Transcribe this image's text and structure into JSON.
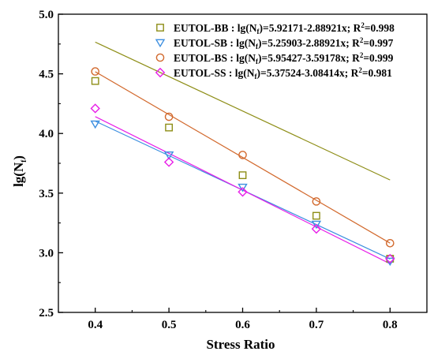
{
  "chart_data": {
    "type": "scatter",
    "xlabel": "Stress Ratio",
    "ylabel_main": "lg(N",
    "ylabel_sub": "f",
    "ylabel_close": ")",
    "xlim": [
      0.35,
      0.85
    ],
    "ylim": [
      2.5,
      5.0
    ],
    "xticks": [
      0.4,
      0.5,
      0.6,
      0.7,
      0.8
    ],
    "xtick_labels": [
      "0.4",
      "0.5",
      "0.6",
      "0.7",
      "0.8"
    ],
    "yticks": [
      2.5,
      3.0,
      3.5,
      4.0,
      4.5,
      5.0
    ],
    "ytick_labels": [
      "2.5",
      "3.0",
      "3.5",
      "4.0",
      "4.5",
      "5.0"
    ],
    "legend_position": "top-right",
    "grid": false,
    "x": [
      0.4,
      0.5,
      0.6,
      0.7,
      0.8
    ],
    "series": [
      {
        "name": "EUTOL-BB",
        "marker": "square",
        "color": "#8e8e17",
        "values": [
          4.44,
          4.05,
          3.65,
          3.31,
          2.95
        ],
        "fit": {
          "intercept": 5.92171,
          "slope": -2.88921
        },
        "legend": {
          "p1": " : lg(N",
          "sub1": "f",
          "p2": ")=5.92171-2.88921x; R",
          "sup": "2",
          "p3": "=0.998"
        }
      },
      {
        "name": "EUTOL-SB",
        "marker": "triangle-down",
        "color": "#3d8fe0",
        "values": [
          4.08,
          3.82,
          3.55,
          3.24,
          2.93
        ],
        "fit": {
          "intercept": 5.25903,
          "slope": -2.88921
        },
        "legend": {
          "p1": " : lg(N",
          "sub1": "f",
          "p2": ")=5.25903-2.88921x; R",
          "sup": "2",
          "p3": "=0.997"
        }
      },
      {
        "name": "EUTOL-BS",
        "marker": "circle",
        "color": "#d2692d",
        "values": [
          4.52,
          4.14,
          3.82,
          3.43,
          3.08
        ],
        "fit": {
          "intercept": 5.95427,
          "slope": -3.59178
        },
        "legend": {
          "p1": " : lg(N",
          "sub1": "f",
          "p2": ")=5.95427-3.59178x; R",
          "sup": "2",
          "p3": "=0.999"
        }
      },
      {
        "name": "EUTOL-SS",
        "marker": "diamond",
        "color": "#e81ee8",
        "values": [
          4.21,
          3.76,
          3.51,
          3.2,
          2.95
        ],
        "fit": {
          "intercept": 5.37524,
          "slope": -3.08414
        },
        "legend": {
          "p1": " : lg(N",
          "sub1": "f",
          "p2": ")=5.37524-3.08414x; R",
          "sup": "2",
          "p3": "=0.981"
        }
      }
    ]
  }
}
